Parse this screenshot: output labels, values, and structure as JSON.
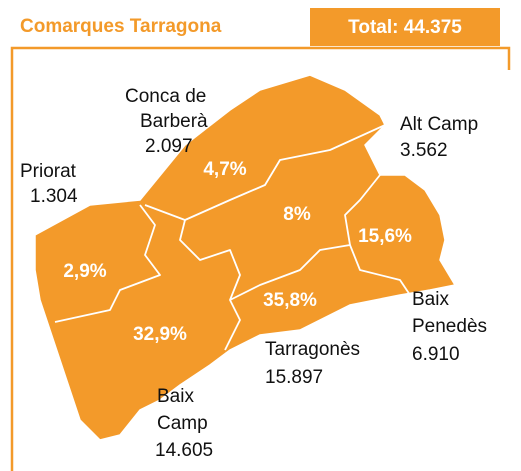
{
  "header": {
    "title": "Comarques Tarragona",
    "total": "Total: 44.375"
  },
  "regions": [
    {
      "name": [
        "Conca de",
        "Barberà"
      ],
      "value": "2.097",
      "percent": "4,7%"
    },
    {
      "name": [
        "Alt Camp"
      ],
      "value": "3.562",
      "percent": "8%"
    },
    {
      "name": [
        "Priorat"
      ],
      "value": "1.304",
      "percent": "2,9%"
    },
    {
      "name": [
        "Baix",
        "Penedès"
      ],
      "value": "6.910",
      "percent": "15,6%"
    },
    {
      "name": [
        "Tarragonès"
      ],
      "value": "15.897",
      "percent": "35,8%"
    },
    {
      "name": [
        "Baix",
        "Camp"
      ],
      "value": "14.605",
      "percent": "32,9%"
    }
  ]
}
